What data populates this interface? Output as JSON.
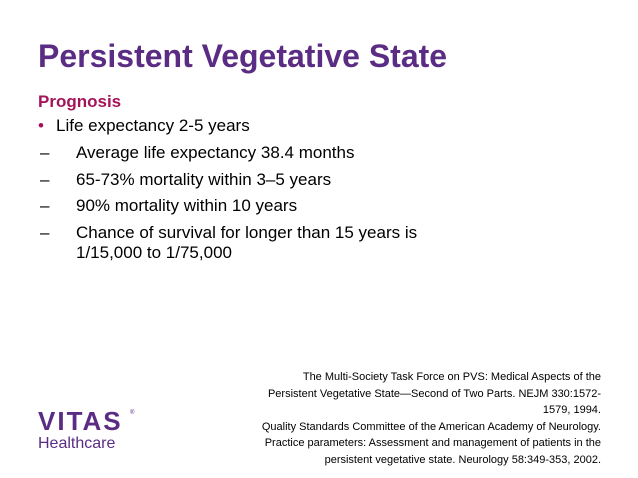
{
  "slide": {
    "title": "Persistent Vegetative State",
    "subtitle": "Prognosis",
    "bullets": [
      {
        "bullet_char": "•",
        "text": "Life expectancy 2-5 years",
        "sub": [
          {
            "dash": "–",
            "text": "Average life expectancy 38.4 months"
          },
          {
            "dash": "–",
            "text": "65-73% mortality within 3–5 years"
          },
          {
            "dash": "–",
            "text": "90% mortality within 10 years"
          },
          {
            "dash": "–",
            "text": "Chance of survival for longer than 15 years is 1/15,000 to 1/75,000"
          }
        ]
      }
    ],
    "citations": [
      "The Multi-Society Task Force on PVS: Medical Aspects of the Persistent Vegetative State—Second of Two Parts. NEJM 330:1572-1579, 1994.",
      "Quality Standards Committee of the American Academy of Neurology. Practice parameters: Assessment and management of patients in the persistent vegetative state. Neurology 58:349-353, 2002."
    ]
  },
  "logo": {
    "wordmark": "VITAS",
    "registered": "®",
    "subtext": "Healthcare"
  },
  "colors": {
    "title": "#5b2c83",
    "subtitle": "#a3145a",
    "bullet": "#a3145a",
    "logo": "#5b2c83",
    "background": "#ffffff",
    "text": "#000000"
  }
}
